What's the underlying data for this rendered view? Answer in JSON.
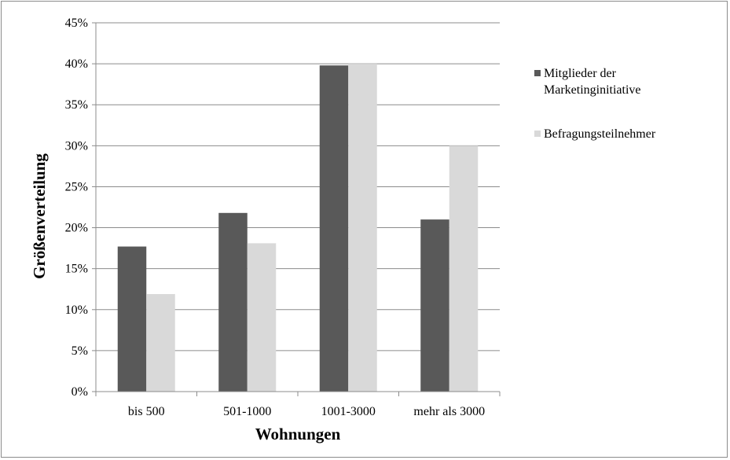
{
  "chart_data": {
    "type": "bar",
    "categories": [
      "bis 500",
      "501-1000",
      "1001-3000",
      "mehr als 3000"
    ],
    "series": [
      {
        "name": "Mitglieder der Marketinginitiative",
        "values": [
          17.7,
          21.8,
          39.8,
          21.0
        ],
        "color": "#595959"
      },
      {
        "name": "Befragungsteilnehmer",
        "values": [
          11.9,
          18.1,
          40.0,
          30.0
        ],
        "color": "#d9d9d9"
      }
    ],
    "xlabel": "Wohnungen",
    "ylabel": "Größenverteilung",
    "ylim": [
      0,
      45
    ],
    "ytick_step": 5,
    "ytick_labels": [
      "0%",
      "5%",
      "10%",
      "15%",
      "20%",
      "25%",
      "30%",
      "35%",
      "40%",
      "45%"
    ],
    "grid": true,
    "legend_position": "right",
    "legend_lines": [
      [
        "Mitglieder der",
        "Marketinginitiative"
      ],
      [
        "Befragungsteilnehmer"
      ]
    ]
  }
}
